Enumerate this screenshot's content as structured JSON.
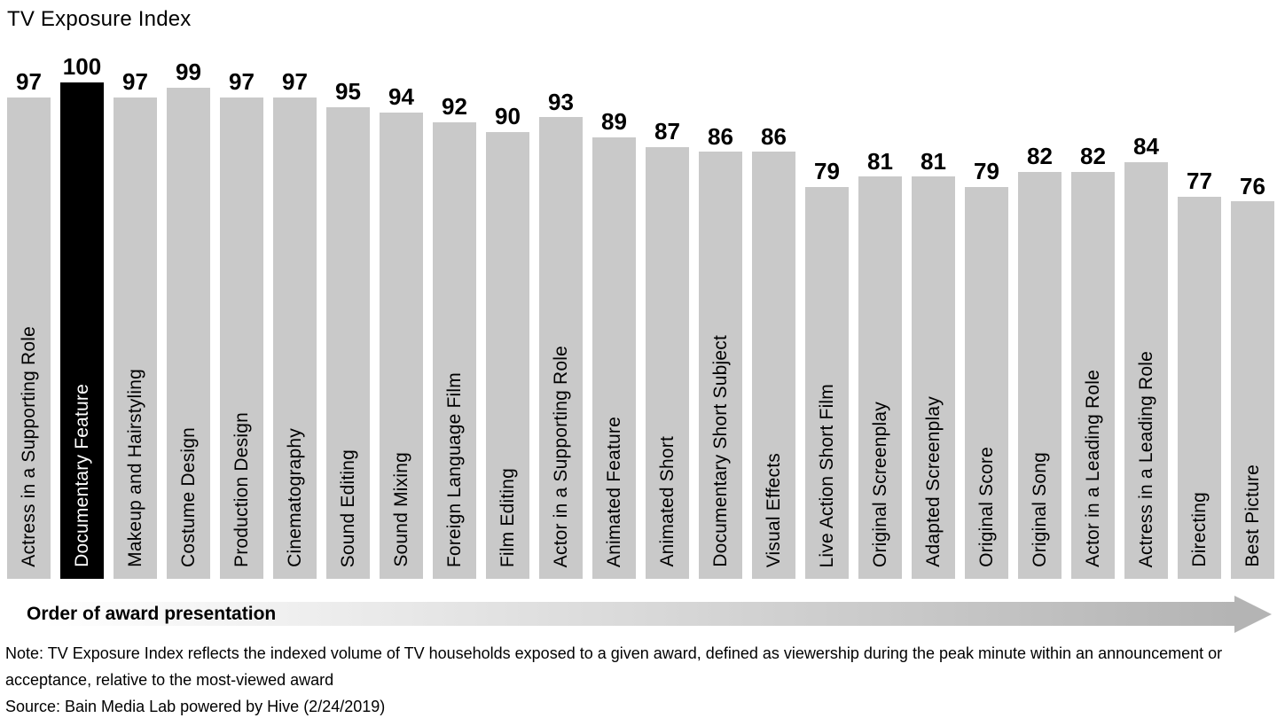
{
  "title": "TV Exposure Index",
  "x_axis": {
    "label": "Order of award presentation"
  },
  "footnote": {
    "note": "Note: TV Exposure Index reflects the indexed volume of TV households exposed to a given award, defined as viewership during the peak minute within an announcement or acceptance, relative to the most-viewed award",
    "source": "Source: Bain Media Lab powered by Hive (2/24/2019)"
  },
  "chart_data": {
    "type": "bar",
    "title": "TV Exposure Index",
    "xlabel": "Order of award presentation",
    "ylabel": "TV Exposure Index",
    "ylim": [
      0,
      100
    ],
    "grid": false,
    "legend": false,
    "bar_color": "#c9c9c9",
    "highlight_color": "#000000",
    "highlight_text_color": "#ffffff",
    "highlighted_category": "Documentary Feature",
    "categories": [
      "Actress in a Supporting Role",
      "Documentary Feature",
      "Makeup and Hairstyling",
      "Costume Design",
      "Production Design",
      "Cinematography",
      "Sound Editing",
      "Sound Mixing",
      "Foreign Language Film",
      "Film Editing",
      "Actor in a Supporting Role",
      "Animated Feature",
      "Animated Short",
      "Documentary Short Subject",
      "Visual Effects",
      "Live Action Short Film",
      "Original Screenplay",
      "Adapted Screenplay",
      "Original Score",
      "Original Song",
      "Actor in a Leading Role",
      "Actress in a Leading Role",
      "Directing",
      "Best Picture"
    ],
    "values": [
      97,
      100,
      97,
      99,
      97,
      97,
      95,
      94,
      92,
      90,
      93,
      89,
      87,
      86,
      86,
      79,
      81,
      81,
      79,
      82,
      82,
      84,
      77,
      76
    ]
  }
}
